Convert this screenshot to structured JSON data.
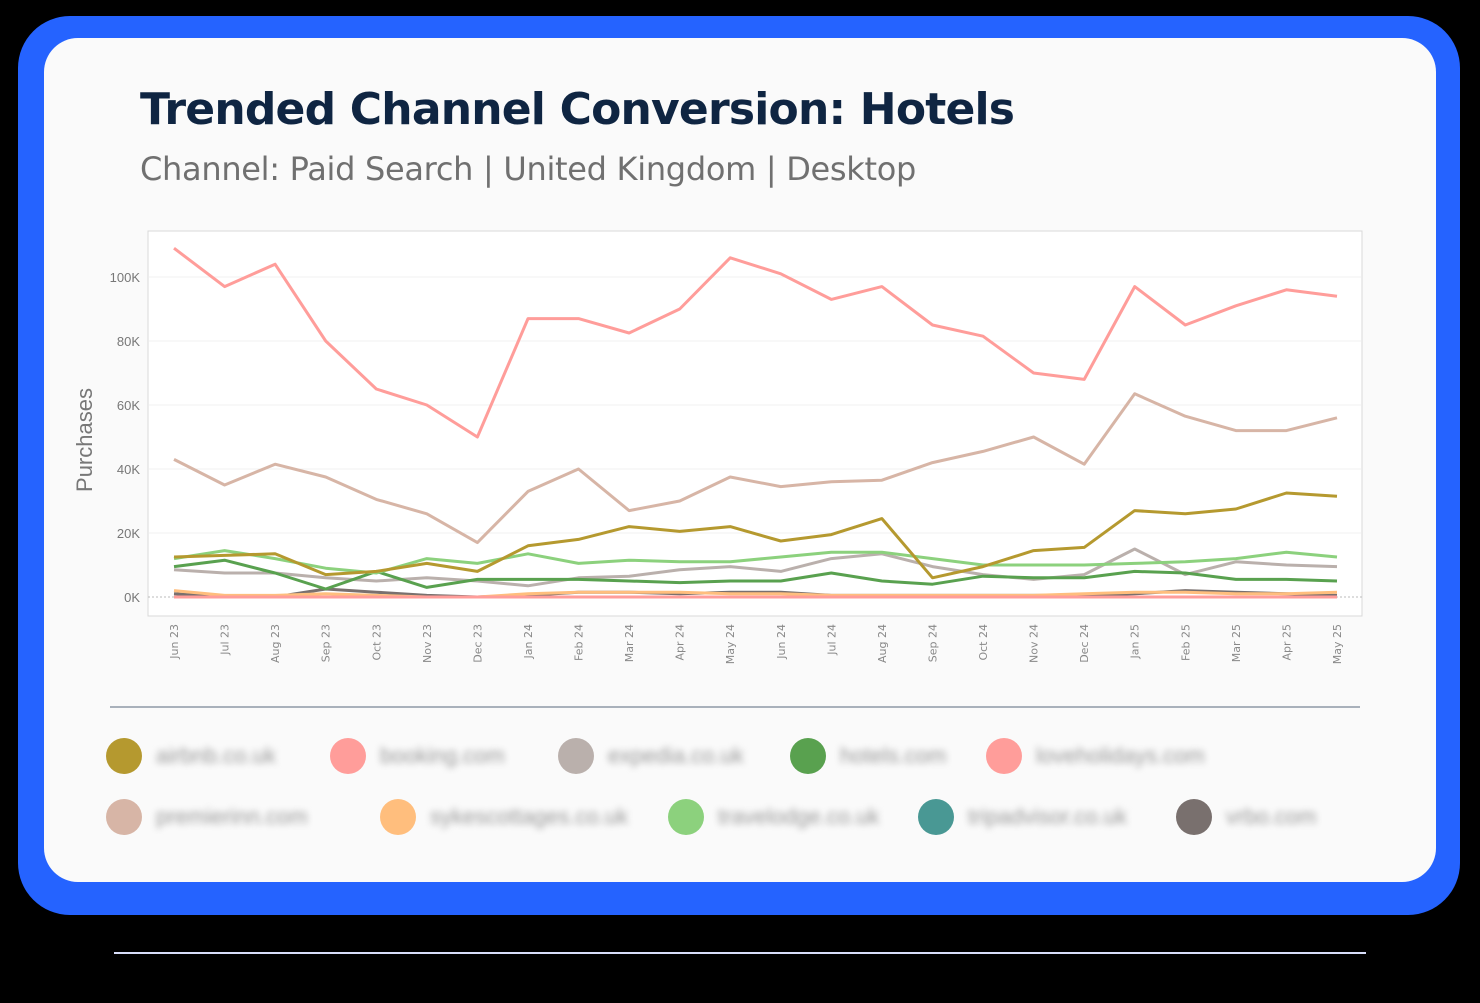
{
  "header": {
    "title": "Trended Channel Conversion: Hotels",
    "subtitle": "Channel: Paid Search | United Kingdom | Desktop"
  },
  "chart_data": {
    "type": "line",
    "title": "Trended Channel Conversion: Hotels",
    "subtitle": "Channel: Paid Search | United Kingdom | Desktop",
    "xlabel": "",
    "ylabel": "Purchases",
    "ylim": [
      0,
      110000
    ],
    "yticks": [
      "0K",
      "20K",
      "40K",
      "60K",
      "80K",
      "100K"
    ],
    "grid": true,
    "legend_position": "bottom",
    "categories": [
      "Jun 23",
      "Jul 23",
      "Aug 23",
      "Sep 23",
      "Oct 23",
      "Nov 23",
      "Dec 23",
      "Jan 24",
      "Feb 24",
      "Mar 24",
      "Apr 24",
      "May 24",
      "Jun 24",
      "Jul 24",
      "Aug 24",
      "Sep 24",
      "Oct 24",
      "Nov 24",
      "Dec 24",
      "Jan 25",
      "Feb 25",
      "Mar 25",
      "Apr 25",
      "May 25"
    ],
    "series": [
      {
        "name": "airbnb.co.uk",
        "color": "#b5992f",
        "values": [
          12500,
          13000,
          13500,
          7000,
          8000,
          10500,
          8000,
          16000,
          18000,
          22000,
          20500,
          22000,
          17500,
          19500,
          24500,
          6000,
          9500,
          14500,
          15500,
          27000,
          26000,
          27500,
          32500,
          31500
        ]
      },
      {
        "name": "booking.com",
        "color": "#ff9d9a",
        "values": [
          0,
          0,
          0,
          0,
          0,
          0,
          0,
          0,
          0,
          0,
          0,
          0,
          0,
          0,
          0,
          0,
          0,
          0,
          0,
          0,
          0,
          0,
          0,
          0
        ]
      },
      {
        "name": "expedia.co.uk",
        "color": "#bab0ac",
        "values": [
          8500,
          7500,
          7500,
          6000,
          5000,
          6000,
          5000,
          3500,
          6000,
          6500,
          8500,
          9500,
          8000,
          12000,
          13500,
          9500,
          7000,
          5500,
          7000,
          15000,
          7000,
          11000,
          10000,
          9500
        ]
      },
      {
        "name": "hotels.com",
        "color": "#59a14f",
        "values": [
          9500,
          11500,
          7500,
          2500,
          8000,
          3000,
          5500,
          5500,
          5500,
          5000,
          4500,
          5000,
          5000,
          7500,
          5000,
          4000,
          6500,
          6000,
          6000,
          8000,
          7500,
          5500,
          5500,
          5000
        ]
      },
      {
        "name": "loveholidays.com",
        "color": "#ff9d9a",
        "values": [
          109000,
          97000,
          104000,
          80000,
          65000,
          60000,
          50000,
          87000,
          87000,
          82500,
          90000,
          106000,
          101000,
          93000,
          97000,
          85000,
          81500,
          70000,
          68000,
          97000,
          85000,
          91000,
          96000,
          94000
        ]
      },
      {
        "name": "premierinn.com",
        "color": "#d7b5a6",
        "values": [
          43000,
          35000,
          41500,
          37500,
          30500,
          26000,
          17000,
          33000,
          40000,
          27000,
          30000,
          37500,
          34500,
          36000,
          36500,
          42000,
          45500,
          50000,
          41500,
          63500,
          56500,
          52000,
          52000,
          56000
        ]
      },
      {
        "name": "sykescottages.co.uk",
        "color": "#ffbe7d",
        "values": [
          2000,
          500,
          500,
          1000,
          500,
          0,
          0,
          1000,
          1500,
          1500,
          1500,
          1000,
          1000,
          500,
          500,
          500,
          500,
          500,
          1000,
          1500,
          1500,
          1000,
          1000,
          1500
        ]
      },
      {
        "name": "travelodge.co.uk",
        "color": "#8cd17d",
        "values": [
          12000,
          14500,
          12000,
          9000,
          7500,
          12000,
          10500,
          13500,
          10500,
          11500,
          11000,
          11000,
          12500,
          14000,
          14000,
          12000,
          10000,
          10000,
          10000,
          10500,
          11000,
          12000,
          14000,
          12500
        ]
      },
      {
        "name": "tripadvisor.co.uk",
        "color": "#499894",
        "values": [
          0,
          0,
          0,
          0,
          0,
          0,
          0,
          0,
          0,
          0,
          0,
          0,
          0,
          0,
          0,
          0,
          0,
          0,
          0,
          0,
          0,
          0,
          0,
          0
        ]
      },
      {
        "name": "vrbo.com",
        "color": "#79706e",
        "values": [
          1000,
          0,
          0,
          2500,
          1500,
          500,
          0,
          500,
          1500,
          1500,
          1000,
          1500,
          1500,
          500,
          500,
          500,
          500,
          500,
          500,
          1000,
          2000,
          1500,
          1000,
          500
        ]
      }
    ]
  },
  "legend": {
    "items": [
      {
        "label": "airbnb.co.uk",
        "color": "#b5992f"
      },
      {
        "label": "booking.com",
        "color": "#ff9d9a"
      },
      {
        "label": "expedia.co.uk",
        "color": "#bab0ac"
      },
      {
        "label": "hotels.com",
        "color": "#59a14f"
      },
      {
        "label": "loveholidays.com",
        "color": "#ff9d9a"
      },
      {
        "label": "premierinn.com",
        "color": "#d7b5a6"
      },
      {
        "label": "sykescottages.co.uk",
        "color": "#ffbe7d"
      },
      {
        "label": "travelodge.co.uk",
        "color": "#8cd17d"
      },
      {
        "label": "tripadvisor.co.uk",
        "color": "#499894"
      },
      {
        "label": "vrbo.com",
        "color": "#79706e"
      }
    ]
  },
  "colors": {
    "frame": "#2563ff",
    "card": "#fafafa",
    "title": "#0f2542",
    "subtitle": "#707070"
  }
}
